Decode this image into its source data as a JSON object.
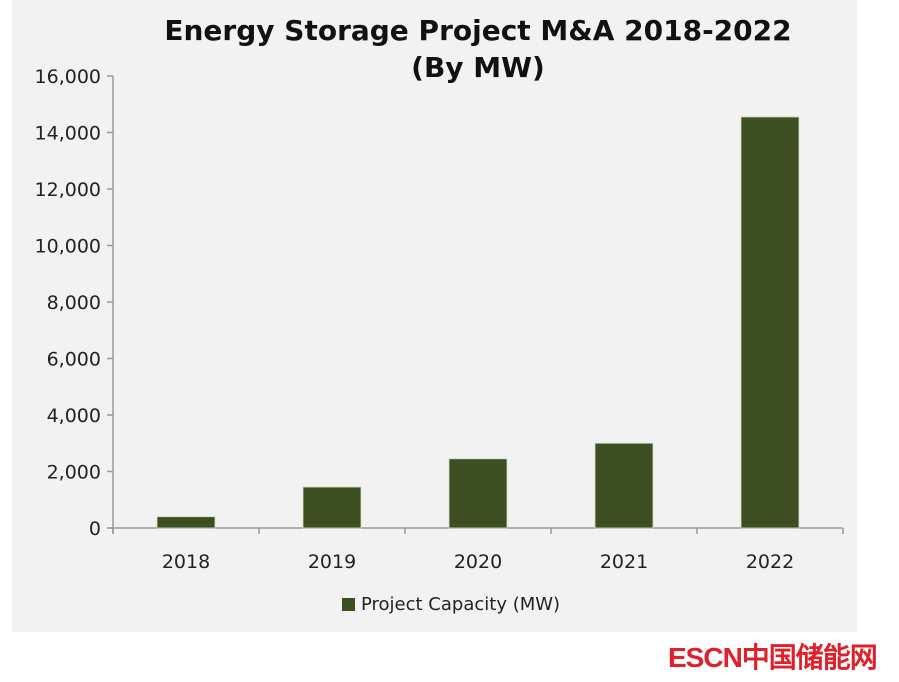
{
  "chart_data": {
    "type": "bar",
    "title": "Energy Storage Project M&A 2018-2022",
    "subtitle": "(By MW)",
    "categories": [
      "2018",
      "2019",
      "2020",
      "2021",
      "2022"
    ],
    "series": [
      {
        "name": "Project Capacity (MW)",
        "values": [
          400,
          1450,
          2450,
          3000,
          14550
        ],
        "color": "#3d4f20"
      }
    ],
    "ylim": [
      0,
      16000
    ],
    "yticks": [
      "0",
      "2,000",
      "4,000",
      "6,000",
      "8,000",
      "10,000",
      "12,000",
      "14,000",
      "16,000"
    ],
    "grid": false,
    "legend": "bottom"
  },
  "watermark": "ESCN中国储能网"
}
